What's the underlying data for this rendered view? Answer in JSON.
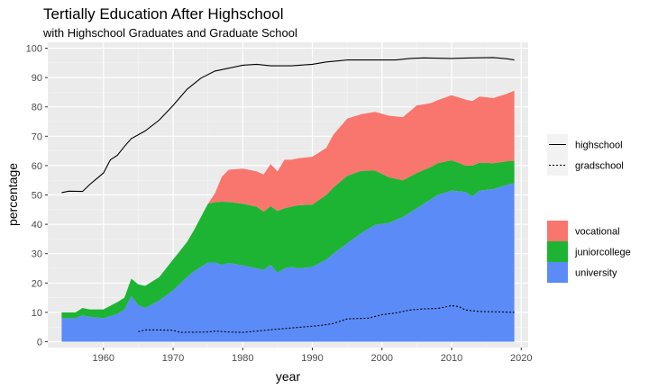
{
  "chart_data": {
    "type": "area",
    "title": "Tertially Education After Highschool",
    "subtitle": "with Highschool Graduates and Graduate School",
    "xlabel": "year",
    "ylabel": "percentage",
    "xlim": [
      1952,
      2021
    ],
    "ylim": [
      -2,
      102
    ],
    "xticks": [
      1960,
      1970,
      1980,
      1990,
      2000,
      2010,
      2020
    ],
    "yticks": [
      0,
      10,
      20,
      30,
      40,
      50,
      60,
      70,
      80,
      90,
      100
    ],
    "grid": true,
    "stacked": true,
    "legend_lines": [
      {
        "name": "highschool",
        "style": "solid",
        "color": "#000000"
      },
      {
        "name": "gradschool",
        "style": "dotted",
        "color": "#000000"
      }
    ],
    "legend_fill": [
      {
        "name": "vocational",
        "color": "#F8766D"
      },
      {
        "name": "juniorcollege",
        "color": "#1DB434"
      },
      {
        "name": "university",
        "color": "#5B8BF7"
      }
    ],
    "area_series": [
      {
        "name": "university",
        "color": "#5B8BF7",
        "points": [
          [
            1954,
            8
          ],
          [
            1956,
            8
          ],
          [
            1957,
            9
          ],
          [
            1958,
            8.5
          ],
          [
            1960,
            8
          ],
          [
            1962,
            9.5
          ],
          [
            1963,
            11
          ],
          [
            1964,
            15.5
          ],
          [
            1965,
            12.5
          ],
          [
            1966,
            11.5
          ],
          [
            1968,
            14
          ],
          [
            1970,
            17.5
          ],
          [
            1972,
            22
          ],
          [
            1973,
            24
          ],
          [
            1975,
            27
          ],
          [
            1976,
            27
          ],
          [
            1977,
            26.2
          ],
          [
            1978,
            26.8
          ],
          [
            1980,
            26
          ],
          [
            1982,
            25
          ],
          [
            1983,
            24.5
          ],
          [
            1984,
            26.2
          ],
          [
            1985,
            23.5
          ],
          [
            1986,
            25
          ],
          [
            1987,
            25.5
          ],
          [
            1988,
            25
          ],
          [
            1990,
            25.5
          ],
          [
            1992,
            28
          ],
          [
            1993,
            30
          ],
          [
            1995,
            33.5
          ],
          [
            1997,
            37
          ],
          [
            1999,
            39.8
          ],
          [
            2001,
            40.5
          ],
          [
            2003,
            42.5
          ],
          [
            2005,
            45.5
          ],
          [
            2007,
            48.5
          ],
          [
            2008,
            50
          ],
          [
            2010,
            51.5
          ],
          [
            2012,
            51
          ],
          [
            2013,
            49.5
          ],
          [
            2014,
            51.5
          ],
          [
            2016,
            52
          ],
          [
            2018,
            53.5
          ],
          [
            2019,
            54
          ]
        ]
      },
      {
        "name": "juniorcollege",
        "color": "#1DB434",
        "points": [
          [
            1954,
            2
          ],
          [
            1956,
            2
          ],
          [
            1957,
            2.5
          ],
          [
            1958,
            2.5
          ],
          [
            1960,
            3
          ],
          [
            1962,
            4
          ],
          [
            1963,
            4
          ],
          [
            1964,
            6
          ],
          [
            1965,
            7
          ],
          [
            1966,
            7.5
          ],
          [
            1968,
            8
          ],
          [
            1970,
            10.5
          ],
          [
            1972,
            12
          ],
          [
            1973,
            14
          ],
          [
            1975,
            20
          ],
          [
            1976,
            20.5
          ],
          [
            1977,
            21.5
          ],
          [
            1978,
            20.8
          ],
          [
            1980,
            21
          ],
          [
            1982,
            21
          ],
          [
            1983,
            19.8
          ],
          [
            1984,
            20
          ],
          [
            1985,
            21
          ],
          [
            1986,
            20.5
          ],
          [
            1987,
            20.5
          ],
          [
            1988,
            21.5
          ],
          [
            1990,
            21.2
          ],
          [
            1992,
            22
          ],
          [
            1993,
            22.5
          ],
          [
            1995,
            23
          ],
          [
            1997,
            21.2
          ],
          [
            1999,
            18.5
          ],
          [
            2001,
            15.5
          ],
          [
            2003,
            12.5
          ],
          [
            2005,
            12
          ],
          [
            2007,
            11
          ],
          [
            2008,
            10.8
          ],
          [
            2010,
            10.3
          ],
          [
            2012,
            9
          ],
          [
            2013,
            10.5
          ],
          [
            2014,
            9.5
          ],
          [
            2016,
            8.8
          ],
          [
            2018,
            8
          ],
          [
            2019,
            7.5
          ]
        ]
      },
      {
        "name": "vocational",
        "color": "#F8766D",
        "points": [
          [
            1954,
            0
          ],
          [
            1956,
            0
          ],
          [
            1957,
            0
          ],
          [
            1958,
            0
          ],
          [
            1960,
            0
          ],
          [
            1962,
            0
          ],
          [
            1963,
            0
          ],
          [
            1964,
            0
          ],
          [
            1965,
            0
          ],
          [
            1966,
            0
          ],
          [
            1968,
            0
          ],
          [
            1970,
            0
          ],
          [
            1972,
            0
          ],
          [
            1973,
            0
          ],
          [
            1975,
            0
          ],
          [
            1976,
            3
          ],
          [
            1977,
            8.5
          ],
          [
            1978,
            11
          ],
          [
            1980,
            12
          ],
          [
            1982,
            12
          ],
          [
            1983,
            12.7
          ],
          [
            1984,
            14.3
          ],
          [
            1985,
            13.5
          ],
          [
            1986,
            16.5
          ],
          [
            1987,
            16
          ],
          [
            1988,
            16
          ],
          [
            1990,
            16.3
          ],
          [
            1992,
            16
          ],
          [
            1993,
            18
          ],
          [
            1995,
            19.5
          ],
          [
            1997,
            19.3
          ],
          [
            1999,
            20
          ],
          [
            2001,
            21
          ],
          [
            2003,
            21.5
          ],
          [
            2005,
            23
          ],
          [
            2007,
            21.8
          ],
          [
            2008,
            21.5
          ],
          [
            2010,
            22.2
          ],
          [
            2012,
            22.5
          ],
          [
            2013,
            22
          ],
          [
            2014,
            22.5
          ],
          [
            2016,
            22.2
          ],
          [
            2018,
            23
          ],
          [
            2019,
            24
          ]
        ]
      }
    ],
    "line_series": [
      {
        "name": "highschool",
        "style": "solid",
        "points": [
          [
            1954,
            50.8
          ],
          [
            1955,
            51.3
          ],
          [
            1957,
            51.2
          ],
          [
            1958,
            53.5
          ],
          [
            1959,
            55.5
          ],
          [
            1960,
            57.5
          ],
          [
            1961,
            62
          ],
          [
            1962,
            63.5
          ],
          [
            1963,
            66.5
          ],
          [
            1964,
            69.2
          ],
          [
            1966,
            71.8
          ],
          [
            1968,
            75.5
          ],
          [
            1970,
            80.5
          ],
          [
            1972,
            86
          ],
          [
            1974,
            89.8
          ],
          [
            1976,
            92.2
          ],
          [
            1978,
            93.2
          ],
          [
            1980,
            94.2
          ],
          [
            1982,
            94.5
          ],
          [
            1984,
            94
          ],
          [
            1987,
            94
          ],
          [
            1990,
            94.5
          ],
          [
            1992,
            95.3
          ],
          [
            1995,
            96
          ],
          [
            1998,
            96
          ],
          [
            2000,
            96
          ],
          [
            2002,
            96
          ],
          [
            2004,
            96.5
          ],
          [
            2006,
            96.7
          ],
          [
            2010,
            96.5
          ],
          [
            2013,
            96.7
          ],
          [
            2016,
            96.8
          ],
          [
            2018,
            96.4
          ],
          [
            2019,
            96
          ]
        ]
      },
      {
        "name": "gradschool",
        "style": "dotted",
        "points": [
          [
            1965,
            3.4
          ],
          [
            1966,
            4
          ],
          [
            1968,
            4
          ],
          [
            1970,
            3.9
          ],
          [
            1971,
            3.2
          ],
          [
            1975,
            3.3
          ],
          [
            1976,
            3.6
          ],
          [
            1978,
            3.3
          ],
          [
            1980,
            3.2
          ],
          [
            1982,
            3.6
          ],
          [
            1985,
            4.3
          ],
          [
            1987,
            4.7
          ],
          [
            1989,
            5.1
          ],
          [
            1991,
            5.5
          ],
          [
            1993,
            6.2
          ],
          [
            1995,
            7.8
          ],
          [
            1998,
            8
          ],
          [
            2000,
            9.2
          ],
          [
            2002,
            9.8
          ],
          [
            2004,
            10.8
          ],
          [
            2006,
            11.2
          ],
          [
            2008,
            11.3
          ],
          [
            2010,
            12.3
          ],
          [
            2011,
            12
          ],
          [
            2012,
            10.8
          ],
          [
            2014,
            10.3
          ],
          [
            2016,
            10.2
          ],
          [
            2018,
            10.1
          ],
          [
            2019,
            10
          ]
        ]
      }
    ]
  }
}
